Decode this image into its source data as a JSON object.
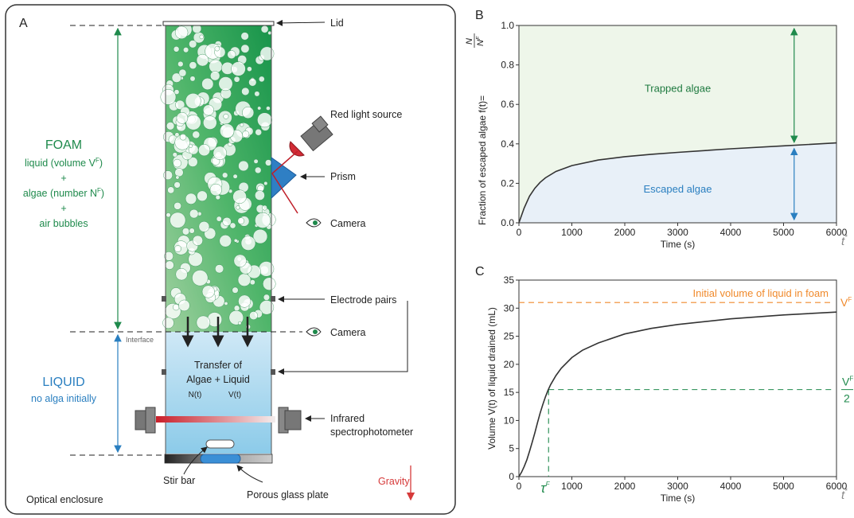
{
  "panel_a": {
    "letter": "A",
    "foam": {
      "title": "FOAM",
      "line1": "liquid (volume V",
      "line1_sup": "F",
      "line1_end": ")",
      "plus1": "+",
      "line2": "algae (number N",
      "line2_sup": "F",
      "line2_end": ")",
      "plus2": "+",
      "line3": "air bubbles"
    },
    "liquid": {
      "title": "LIQUID",
      "subtitle": "no alga initially"
    },
    "interface_label": "Interface",
    "transfer": {
      "line1": "Transfer of",
      "line2": "Algae + Liquid",
      "n_label": "N(t)",
      "v_label": "V(t)"
    },
    "callouts": {
      "lid": "Lid",
      "red_light": "Red light source",
      "prism": "Prism",
      "camera_top": "Camera",
      "electrodes": "Electrode pairs",
      "camera_interface": "Camera",
      "infrared_1": "Infrared",
      "infrared_2": "spectrophotometer",
      "stir_bar": "Stir bar",
      "porous_plate": "Porous glass plate",
      "gravity": "Gravity",
      "enclosure": "Optical enclosure"
    },
    "colors": {
      "foam_green": "#1f8a4c",
      "liquid_blue": "#2a7fc0",
      "gravity_red": "#d63a3a",
      "frame": "#333333"
    }
  },
  "chart_data": [
    {
      "panel": "B",
      "type": "line",
      "xlabel": "Time (s)",
      "ylabel": "Fraction of escaped algae f(t)=",
      "ylabel_frac_num": "N",
      "ylabel_frac_den": "N",
      "ylabel_frac_sup": "F",
      "x_end_label": "t",
      "x_end_sup": "*",
      "xlim": [
        0,
        6000
      ],
      "ylim": [
        0,
        1.0
      ],
      "xticks": [
        0,
        1000,
        2000,
        3000,
        4000,
        5000,
        6000
      ],
      "yticks": [
        "0.0",
        "0.2",
        "0.4",
        "0.6",
        "0.8",
        "1.0"
      ],
      "series": [
        {
          "x": [
            0,
            100,
            200,
            300,
            400,
            500,
            700,
            1000,
            1500,
            2000,
            2500,
            3000,
            4000,
            5000,
            6000
          ],
          "y": [
            0,
            0.075,
            0.135,
            0.175,
            0.205,
            0.228,
            0.26,
            0.29,
            0.318,
            0.335,
            0.347,
            0.357,
            0.375,
            0.39,
            0.405
          ]
        }
      ],
      "annotations": {
        "trapped": "Trapped algae",
        "escaped": "Escaped algae",
        "arrow_x": 5200
      },
      "colors": {
        "trapped_fill": "#eef6ea",
        "escaped_fill": "#e8f0f8",
        "trapped_text": "#1f7a40",
        "escaped_text": "#2a7fc0",
        "line": "#333333"
      }
    },
    {
      "panel": "C",
      "type": "line",
      "xlabel": "Time (s)",
      "ylabel": "Volume V(t) of liquid drained (mL)",
      "x_end_label": "t",
      "x_end_sup": "*",
      "xlim": [
        0,
        6000
      ],
      "ylim": [
        0,
        35
      ],
      "xticks": [
        0,
        1000,
        2000,
        3000,
        4000,
        5000,
        6000
      ],
      "yticks": [
        0,
        5,
        10,
        15,
        20,
        25,
        30,
        35
      ],
      "series": [
        {
          "x": [
            0,
            50,
            100,
            150,
            200,
            250,
            300,
            350,
            400,
            450,
            500,
            550,
            600,
            700,
            800,
            1000,
            1200,
            1500,
            2000,
            2500,
            3000,
            4000,
            5000,
            6000
          ],
          "y": [
            0,
            0.8,
            1.8,
            3.0,
            4.5,
            6.1,
            7.8,
            9.6,
            11.3,
            12.8,
            14.2,
            15.4,
            16.4,
            18.0,
            19.3,
            21.2,
            22.5,
            23.8,
            25.4,
            26.4,
            27.1,
            28.1,
            28.8,
            29.3
          ]
        }
      ],
      "reference": {
        "vf": 31,
        "half_vf": 15.5,
        "tau_x": 560
      },
      "annotations": {
        "initial_volume": "Initial volume of liquid in foam",
        "vf_label": "V",
        "vf_sup": "F",
        "half_num": "V",
        "half_sup": "F",
        "half_den": "2",
        "tau": "τ",
        "tau_sup": "F"
      },
      "colors": {
        "orange": "#f08a2c",
        "green": "#1f8a4c",
        "line": "#333333"
      }
    }
  ]
}
